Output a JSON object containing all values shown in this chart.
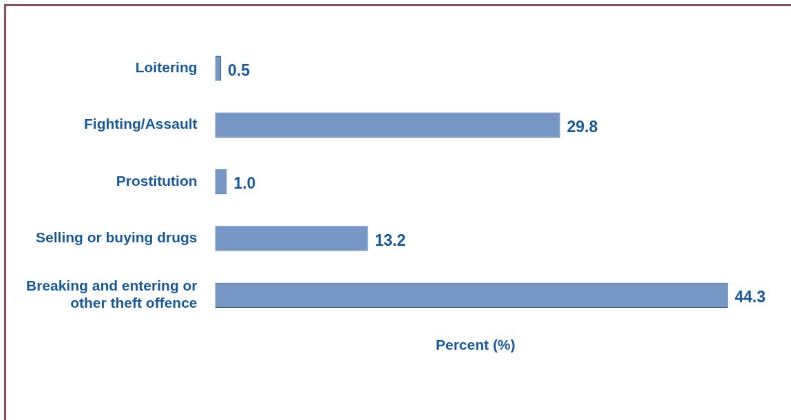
{
  "chart_data": {
    "type": "bar",
    "orientation": "horizontal",
    "annotations": [
      "Percent (%)"
    ],
    "categories": [
      "Loitering",
      "Fighting/Assault",
      "Prostitution",
      "Selling or buying drugs",
      "Breaking and entering or other theft offence"
    ],
    "values": [
      0.5,
      29.8,
      1.0,
      13.2,
      44.3
    ],
    "value_labels": [
      "0.5",
      "29.8",
      "1.0",
      "13.2",
      "44.3"
    ],
    "color": "#7896c4",
    "grid": false,
    "legend": false
  }
}
